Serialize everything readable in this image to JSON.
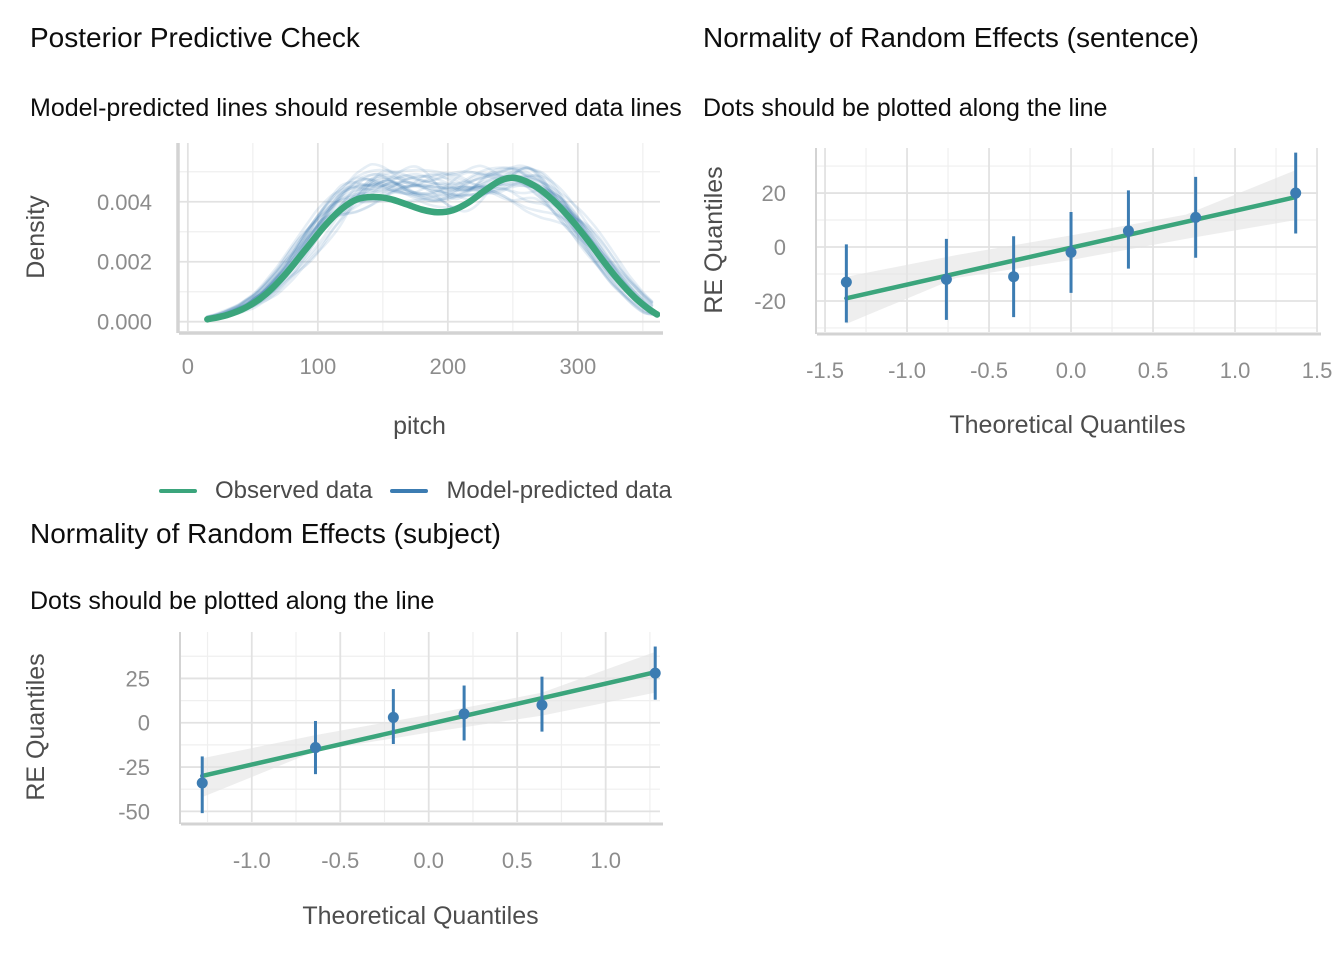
{
  "colors": {
    "observed_green": "#3ba57c",
    "predicted_blue": "#3c7cb2",
    "band_fill": "#e3e3e3",
    "grid_major": "#e2e2e2",
    "grid_minor": "#efefef",
    "axis_line": "#d3d3d3",
    "tick_text": "#8c8c8c",
    "axis_title_text": "#4d4d4d",
    "title_text": "#0d0d0d",
    "legend_text": "#4a4a4a"
  },
  "chart_data": [
    {
      "id": "ppc",
      "type": "line",
      "title": "Posterior Predictive Check",
      "subtitle": "Model-predicted lines should resemble observed data lines",
      "xlabel": "pitch",
      "ylabel": "Density",
      "xlim": [
        -6.8,
        363.2
      ],
      "ylim": [
        -0.00031,
        0.00596
      ],
      "x_ticks": {
        "values": [
          0,
          100,
          200,
          300
        ],
        "labels": [
          "0",
          "100",
          "200",
          "300"
        ]
      },
      "y_ticks": {
        "values": [
          0,
          0.002,
          0.004
        ],
        "labels": [
          "0.000",
          "0.002",
          "0.004"
        ]
      },
      "x_minor": [
        50,
        150,
        250,
        350
      ],
      "y_minor": [
        0.001,
        0.003,
        0.005
      ],
      "grid": true,
      "legend_position": "bottom",
      "legend": [
        {
          "label": "Observed data",
          "color": "#3ba57c"
        },
        {
          "label": "Model-predicted data",
          "color": "#3c7cb2"
        }
      ],
      "observed": [
        [
          15,
          8e-05
        ],
        [
          30,
          0.00022
        ],
        [
          45,
          0.00048
        ],
        [
          60,
          0.00092
        ],
        [
          75,
          0.00158
        ],
        [
          90,
          0.00238
        ],
        [
          105,
          0.00318
        ],
        [
          118,
          0.00375
        ],
        [
          130,
          0.00408
        ],
        [
          142,
          0.00416
        ],
        [
          155,
          0.0041
        ],
        [
          168,
          0.00392
        ],
        [
          180,
          0.00374
        ],
        [
          192,
          0.00365
        ],
        [
          204,
          0.00372
        ],
        [
          216,
          0.00398
        ],
        [
          228,
          0.00436
        ],
        [
          240,
          0.0047
        ],
        [
          250,
          0.0048
        ],
        [
          260,
          0.00468
        ],
        [
          272,
          0.00438
        ],
        [
          284,
          0.00392
        ],
        [
          296,
          0.00335
        ],
        [
          308,
          0.0027
        ],
        [
          320,
          0.002
        ],
        [
          332,
          0.00135
        ],
        [
          344,
          0.0008
        ],
        [
          354,
          0.00044
        ],
        [
          361,
          0.00024
        ]
      ],
      "predicted_base": [
        [
          15,
          0.0001
        ],
        [
          30,
          0.00026
        ],
        [
          45,
          0.00054
        ],
        [
          60,
          0.001
        ],
        [
          75,
          0.0017
        ],
        [
          90,
          0.00255
        ],
        [
          105,
          0.0034
        ],
        [
          118,
          0.004
        ],
        [
          130,
          0.00438
        ],
        [
          142,
          0.00458
        ],
        [
          155,
          0.00464
        ],
        [
          168,
          0.00458
        ],
        [
          180,
          0.00448
        ],
        [
          192,
          0.00442
        ],
        [
          204,
          0.00442
        ],
        [
          216,
          0.0045
        ],
        [
          228,
          0.00462
        ],
        [
          240,
          0.0047
        ],
        [
          250,
          0.00472
        ],
        [
          260,
          0.00464
        ],
        [
          272,
          0.0044
        ],
        [
          284,
          0.00398
        ],
        [
          296,
          0.00342
        ],
        [
          308,
          0.00276
        ],
        [
          320,
          0.00206
        ],
        [
          332,
          0.0014
        ],
        [
          344,
          0.00086
        ],
        [
          354,
          0.00048
        ],
        [
          361,
          0.00028
        ]
      ],
      "ensemble": {
        "n_simulations": 30,
        "seed": 11,
        "noise": 0.0004,
        "alpha": 0.13
      }
    },
    {
      "id": "qq_sentence",
      "type": "scatter",
      "title": "Normality of Random Effects (sentence)",
      "subtitle": "Dots should be plotted along the line",
      "xlabel": "Theoretical Quantiles",
      "ylabel": "RE Quantiles",
      "xlim": [
        -1.549,
        1.506
      ],
      "ylim": [
        -31.5,
        36.7
      ],
      "x_ticks": {
        "values": [
          -1.5,
          -1.0,
          -0.5,
          0.0,
          0.5,
          1.0,
          1.5
        ],
        "labels": [
          "-1.5",
          "-1.0",
          "-0.5",
          "0.0",
          "0.5",
          "1.0",
          "1.5"
        ]
      },
      "y_ticks": {
        "values": [
          20,
          0,
          -20
        ],
        "labels": [
          "20",
          "0",
          "-20"
        ]
      },
      "x_minor": [
        -1.25,
        -0.75,
        -0.25,
        0.25,
        0.75,
        1.25
      ],
      "y_minor": [
        30,
        10,
        -10,
        -30
      ],
      "grid": true,
      "points": [
        {
          "x": -1.37,
          "y": -13,
          "lo": -28,
          "hi": 1
        },
        {
          "x": -0.76,
          "y": -12,
          "lo": -27,
          "hi": 3
        },
        {
          "x": -0.35,
          "y": -11,
          "lo": -26,
          "hi": 4
        },
        {
          "x": 0.0,
          "y": -2,
          "lo": -17,
          "hi": 13
        },
        {
          "x": 0.35,
          "y": 6,
          "lo": -8,
          "hi": 21
        },
        {
          "x": 0.76,
          "y": 11,
          "lo": -4,
          "hi": 26
        },
        {
          "x": 1.37,
          "y": 20,
          "lo": 5,
          "hi": 35
        }
      ],
      "fit_line": {
        "x1": -1.37,
        "y1": -19.0,
        "x2": 1.37,
        "y2": 18.5
      },
      "band_upper": [
        [
          -1.37,
          -11
        ],
        [
          -0.7,
          -3
        ],
        [
          0,
          4.3
        ],
        [
          0.7,
          12
        ],
        [
          1.37,
          28.5
        ]
      ],
      "band_lower": [
        [
          1.37,
          10
        ],
        [
          0.7,
          3
        ],
        [
          0,
          -4.8
        ],
        [
          -0.7,
          -11.5
        ],
        [
          -1.37,
          -28.5
        ]
      ]
    },
    {
      "id": "qq_subject",
      "type": "scatter",
      "title": "Normality of Random Effects (subject)",
      "subtitle": "Dots should be plotted along the line",
      "xlabel": "Theoretical Quantiles",
      "ylabel": "RE Quantiles",
      "xlim": [
        -1.4,
        1.307
      ],
      "ylim": [
        -56.0,
        51.2
      ],
      "x_ticks": {
        "values": [
          -1.0,
          -0.5,
          0.0,
          0.5,
          1.0
        ],
        "labels": [
          "-1.0",
          "-0.5",
          "0.0",
          "0.5",
          "1.0"
        ]
      },
      "y_ticks": {
        "values": [
          25,
          0,
          -25,
          -50
        ],
        "labels": [
          "25",
          "0",
          "-25",
          "-50"
        ]
      },
      "x_minor": [
        -1.25,
        -0.75,
        -0.25,
        0.25,
        0.75,
        1.25
      ],
      "y_minor": [
        37.5,
        12.5,
        -12.5,
        -37.5
      ],
      "grid": true,
      "points": [
        {
          "x": -1.28,
          "y": -34,
          "lo": -51,
          "hi": -19
        },
        {
          "x": -0.64,
          "y": -14,
          "lo": -29,
          "hi": 1
        },
        {
          "x": -0.2,
          "y": 3,
          "lo": -12,
          "hi": 19
        },
        {
          "x": 0.2,
          "y": 5,
          "lo": -10,
          "hi": 21
        },
        {
          "x": 0.64,
          "y": 10,
          "lo": -5,
          "hi": 26
        },
        {
          "x": 1.28,
          "y": 28,
          "lo": 13,
          "hi": 43
        }
      ],
      "fit_line": {
        "x1": -1.28,
        "y1": -30.0,
        "x2": 1.28,
        "y2": 28.5
      },
      "band_upper": [
        [
          -1.28,
          -20
        ],
        [
          -0.64,
          -7
        ],
        [
          0,
          4.5
        ],
        [
          0.64,
          17
        ],
        [
          1.28,
          40
        ]
      ],
      "band_lower": [
        [
          1.28,
          17
        ],
        [
          0.64,
          4
        ],
        [
          0,
          -5.5
        ],
        [
          -0.64,
          -16
        ],
        [
          -1.28,
          -42
        ]
      ]
    }
  ]
}
